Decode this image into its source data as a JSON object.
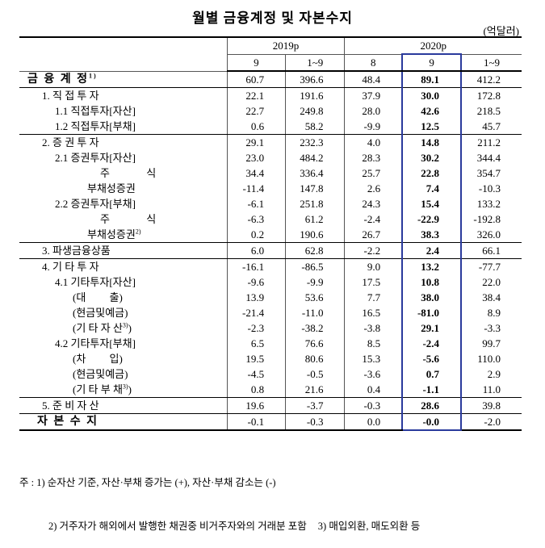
{
  "title": "월별 금융계정 및 자본수지",
  "unit": "(억달러)",
  "table": {
    "years": [
      "2019p",
      "2020p"
    ],
    "periods": [
      "9",
      "1~9",
      "8",
      "9",
      "1~9"
    ],
    "rows": [
      {
        "label": "금 융 계 정",
        "sup": "1)",
        "values": [
          "60.7",
          "396.6",
          "48.4",
          "89.1",
          "412.2"
        ]
      },
      {
        "label": "1. 직 접 투 자",
        "values": [
          "22.1",
          "191.6",
          "37.9",
          "30.0",
          "172.8"
        ]
      },
      {
        "label": "1.1 직접투자[자산]",
        "values": [
          "22.7",
          "249.8",
          "28.0",
          "42.6",
          "218.5"
        ]
      },
      {
        "label": "1.2 직접투자[부채]",
        "values": [
          "0.6",
          "58.2",
          "-9.9",
          "12.5",
          "45.7"
        ]
      },
      {
        "label": "2. 증 권 투 자",
        "values": [
          "29.1",
          "232.3",
          "4.0",
          "14.8",
          "211.2"
        ]
      },
      {
        "label": "2.1 증권투자[자산]",
        "values": [
          "23.0",
          "484.2",
          "28.3",
          "30.2",
          "344.4"
        ]
      },
      {
        "label": "주 식",
        "values": [
          "34.4",
          "336.4",
          "25.7",
          "22.8",
          "354.7"
        ]
      },
      {
        "label": "부채성증권",
        "values": [
          "-11.4",
          "147.8",
          "2.6",
          "7.4",
          "-10.3"
        ]
      },
      {
        "label": "2.2 증권투자[부채]",
        "values": [
          "-6.1",
          "251.8",
          "24.3",
          "15.4",
          "133.2"
        ]
      },
      {
        "label": "주 식",
        "values": [
          "-6.3",
          "61.2",
          "-2.4",
          "-22.9",
          "-192.8"
        ]
      },
      {
        "label": "부채성증권",
        "sup": "2)",
        "values": [
          "0.2",
          "190.6",
          "26.7",
          "38.3",
          "326.0"
        ]
      },
      {
        "label": "3. 파생금융상품",
        "values": [
          "6.0",
          "62.8",
          "-2.2",
          "2.4",
          "66.1"
        ]
      },
      {
        "label": "4. 기 타 투 자",
        "values": [
          "-16.1",
          "-86.5",
          "9.0",
          "13.2",
          "-77.7"
        ]
      },
      {
        "label": "4.1 기타투자[자산]",
        "values": [
          "-9.6",
          "-9.9",
          "17.5",
          "10.8",
          "22.0"
        ]
      },
      {
        "label": "(대 출)",
        "values": [
          "13.9",
          "53.6",
          "7.7",
          "38.0",
          "38.4"
        ]
      },
      {
        "label": "(현금및예금)",
        "values": [
          "-21.4",
          "-11.0",
          "16.5",
          "-81.0",
          "8.9"
        ]
      },
      {
        "label": "(기 타 자 산",
        "sup": "3)",
        "tail": ")",
        "values": [
          "-2.3",
          "-38.2",
          "-3.8",
          "29.1",
          "-3.3"
        ]
      },
      {
        "label": "4.2 기타투자[부채]",
        "values": [
          "6.5",
          "76.6",
          "8.5",
          "-2.4",
          "99.7"
        ]
      },
      {
        "label": "(차 입)",
        "values": [
          "19.5",
          "80.6",
          "15.3",
          "-5.6",
          "110.0"
        ]
      },
      {
        "label": "(현금및예금)",
        "values": [
          "-4.5",
          "-0.5",
          "-3.6",
          "0.7",
          "2.9"
        ]
      },
      {
        "label": "(기 타 부 채",
        "sup": "3)",
        "tail": ")",
        "values": [
          "0.8",
          "21.6",
          "0.4",
          "-1.1",
          "11.0"
        ]
      },
      {
        "label": "5. 준 비 자 산",
        "values": [
          "19.6",
          "-3.7",
          "-0.3",
          "28.6",
          "39.8"
        ]
      },
      {
        "label": "자 본 수 지",
        "values": [
          "-0.1",
          "-0.3",
          "0.0",
          "-0.0",
          "-2.0"
        ]
      }
    ]
  },
  "notes": [
    "주 : 1) 순자산 기준, 자산·부채 증가는 (+), 자산·부채 감소는 (-)",
    "2) 거주자가 해외에서 발행한 채권중 비거주자와의 거래분 포함",
    "3) 매입외환, 매도외환 등"
  ]
}
